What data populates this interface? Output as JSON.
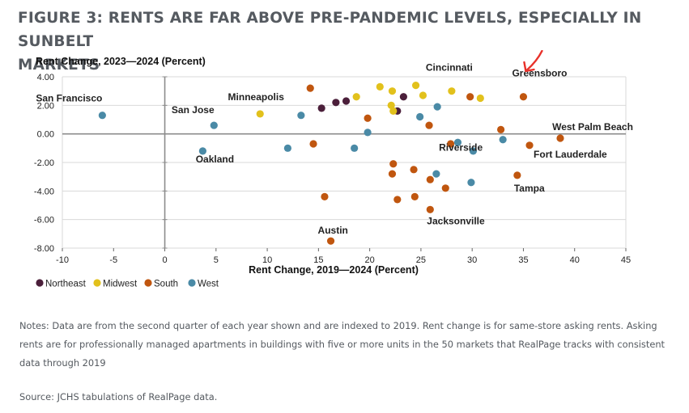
{
  "title_line1": "FIGURE 3: RENTS ARE FAR ABOVE PRE-PANDEMIC LEVELS, ESPECIALLY IN SUNBELT",
  "title_line2": "MARKETS",
  "notes": "Notes: Data are from the second quarter of each year shown and are indexed to 2019. Rent change is for same-store asking rents. Asking rents are for professionally managed apartments in buildings with five or more units in the 50 markets that RealPage tracks with consistent data through 2019",
  "source": "Source: JCHS tabulations of RealPage data.",
  "colors": {
    "Northeast": "#4b1f3a",
    "Midwest": "#e2c11c",
    "South": "#c0560f",
    "West": "#4a8aa6",
    "annotation_arrow": "#e8312a",
    "grid": "#d9d9d9",
    "axis": "#8c8c8c"
  },
  "chart_data": {
    "type": "scatter",
    "title": "",
    "xlabel": "Rent Change, 2019—2024 (Percent)",
    "ylabel": "Rent Change, 2023—2024 (Percent)",
    "xlim": [
      -10,
      45
    ],
    "ylim": [
      -8,
      4
    ],
    "xticks": [
      -10,
      -5,
      0,
      5,
      10,
      15,
      20,
      25,
      30,
      35,
      40,
      45
    ],
    "xtick_labels": [
      "-10",
      "-5",
      "0",
      "5",
      "10",
      "15",
      "20",
      "25",
      "30",
      "35",
      "40",
      "45"
    ],
    "yticks": [
      4,
      2,
      0,
      -2,
      -4,
      -6,
      -8
    ],
    "ytick_labels": [
      "4.00",
      "2.00",
      "0.00",
      "-2.00",
      "-4.00",
      "-6.00",
      "-8.00"
    ],
    "grid": true,
    "legend": [
      "Northeast",
      "Midwest",
      "South",
      "West"
    ],
    "legend_position": "bottom-left",
    "annotation": "red arrow pointing to Greensboro",
    "series": [
      {
        "name": "Northeast",
        "points": [
          {
            "x": 15.3,
            "y": 1.8
          },
          {
            "x": 16.7,
            "y": 2.2
          },
          {
            "x": 17.7,
            "y": 2.3
          },
          {
            "x": 22.7,
            "y": 1.6
          },
          {
            "x": 23.3,
            "y": 2.6
          }
        ]
      },
      {
        "name": "Midwest",
        "points": [
          {
            "x": 9.3,
            "y": 1.4,
            "label": "Minneapolis"
          },
          {
            "x": 18.7,
            "y": 2.6
          },
          {
            "x": 21.0,
            "y": 3.3
          },
          {
            "x": 22.2,
            "y": 3.0
          },
          {
            "x": 22.1,
            "y": 2.0
          },
          {
            "x": 22.3,
            "y": 1.6
          },
          {
            "x": 24.5,
            "y": 3.4
          },
          {
            "x": 25.2,
            "y": 2.7
          },
          {
            "x": 28.0,
            "y": 3.0,
            "label": "Cincinnati"
          },
          {
            "x": 30.8,
            "y": 2.5
          }
        ]
      },
      {
        "name": "South",
        "points": [
          {
            "x": 14.2,
            "y": 3.2
          },
          {
            "x": 14.5,
            "y": -0.7
          },
          {
            "x": 15.6,
            "y": -4.4
          },
          {
            "x": 16.2,
            "y": -7.5,
            "label": "Austin"
          },
          {
            "x": 19.8,
            "y": 1.1
          },
          {
            "x": 22.3,
            "y": -2.1
          },
          {
            "x": 22.2,
            "y": -2.8
          },
          {
            "x": 22.7,
            "y": -4.6
          },
          {
            "x": 24.3,
            "y": -2.5
          },
          {
            "x": 24.4,
            "y": -4.4
          },
          {
            "x": 25.8,
            "y": 0.6
          },
          {
            "x": 25.9,
            "y": -3.2
          },
          {
            "x": 25.9,
            "y": -5.3,
            "label": "Jacksonville"
          },
          {
            "x": 27.4,
            "y": -3.8
          },
          {
            "x": 27.9,
            "y": -0.7
          },
          {
            "x": 29.8,
            "y": 2.6
          },
          {
            "x": 32.8,
            "y": 0.3
          },
          {
            "x": 35.0,
            "y": 2.6,
            "label": "Greensboro"
          },
          {
            "x": 35.6,
            "y": -0.8,
            "label": "Fort Lauderdale"
          },
          {
            "x": 34.4,
            "y": -2.9,
            "label": "Tampa"
          },
          {
            "x": 38.6,
            "y": -0.3,
            "label": "West Palm Beach"
          }
        ]
      },
      {
        "name": "West",
        "points": [
          {
            "x": -6.1,
            "y": 1.3,
            "label": "San Francisco"
          },
          {
            "x": 3.7,
            "y": -1.2,
            "label": "Oakland"
          },
          {
            "x": 4.8,
            "y": 0.6,
            "label": "San Jose"
          },
          {
            "x": 12.0,
            "y": -1.0
          },
          {
            "x": 13.3,
            "y": 1.3
          },
          {
            "x": 18.5,
            "y": -1.0
          },
          {
            "x": 19.8,
            "y": 0.1
          },
          {
            "x": 24.9,
            "y": 1.2
          },
          {
            "x": 26.6,
            "y": 1.9
          },
          {
            "x": 26.5,
            "y": -2.8
          },
          {
            "x": 28.6,
            "y": -0.6
          },
          {
            "x": 29.9,
            "y": -3.4
          },
          {
            "x": 30.1,
            "y": -1.2
          },
          {
            "x": 33.0,
            "y": -0.4,
            "label": "Riverside"
          }
        ]
      }
    ]
  }
}
